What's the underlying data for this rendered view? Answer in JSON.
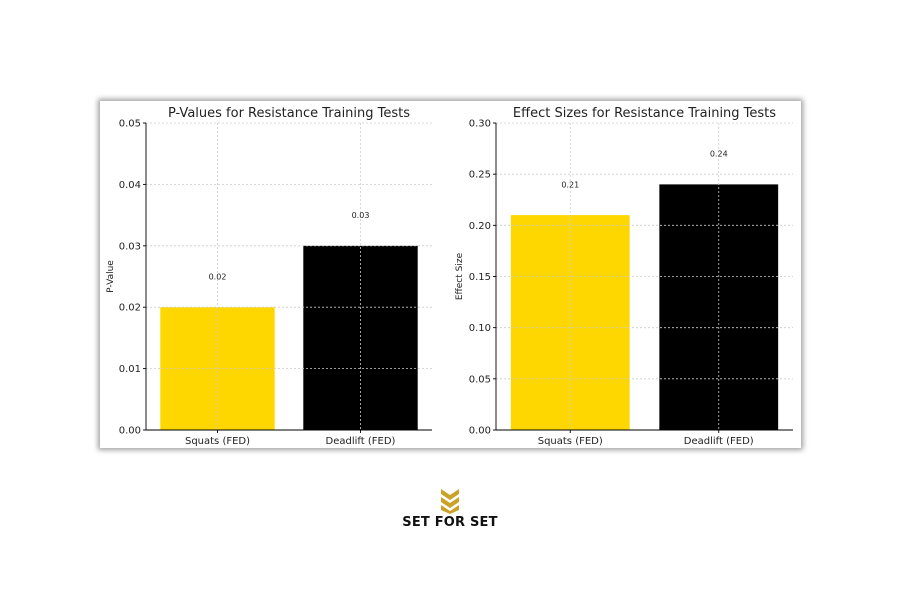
{
  "chart_data": [
    {
      "type": "bar",
      "title": "P-Values for Resistance Training Tests",
      "xlabel": "",
      "ylabel": "P-Value",
      "categories": [
        "Squats (FED)",
        "Deadlift (FED)"
      ],
      "values": [
        0.02,
        0.03
      ],
      "value_labels": [
        "0.02",
        "0.03"
      ],
      "colors": [
        "#FFD700",
        "#000000"
      ],
      "ylim": [
        0,
        0.05
      ],
      "yticks": [
        0,
        0.01,
        0.02,
        0.03,
        0.04,
        0.05
      ],
      "ytick_labels": [
        "0.00",
        "0.01",
        "0.02",
        "0.03",
        "0.04",
        "0.05"
      ],
      "grid": true
    },
    {
      "type": "bar",
      "title": "Effect Sizes for Resistance Training Tests",
      "xlabel": "",
      "ylabel": "Effect Size",
      "categories": [
        "Squats (FED)",
        "Deadlift (FED)"
      ],
      "values": [
        0.21,
        0.24
      ],
      "value_labels": [
        "0.21",
        "0.24"
      ],
      "colors": [
        "#FFD700",
        "#000000"
      ],
      "ylim": [
        0,
        0.3
      ],
      "yticks": [
        0,
        0.05,
        0.1,
        0.15,
        0.2,
        0.25,
        0.3
      ],
      "ytick_labels": [
        "0.00",
        "0.05",
        "0.10",
        "0.15",
        "0.20",
        "0.25",
        "0.30"
      ],
      "grid": true
    }
  ],
  "brand": {
    "name": "SET FOR SET",
    "icon": "chevron-logo-icon",
    "color": "#C9A227"
  }
}
